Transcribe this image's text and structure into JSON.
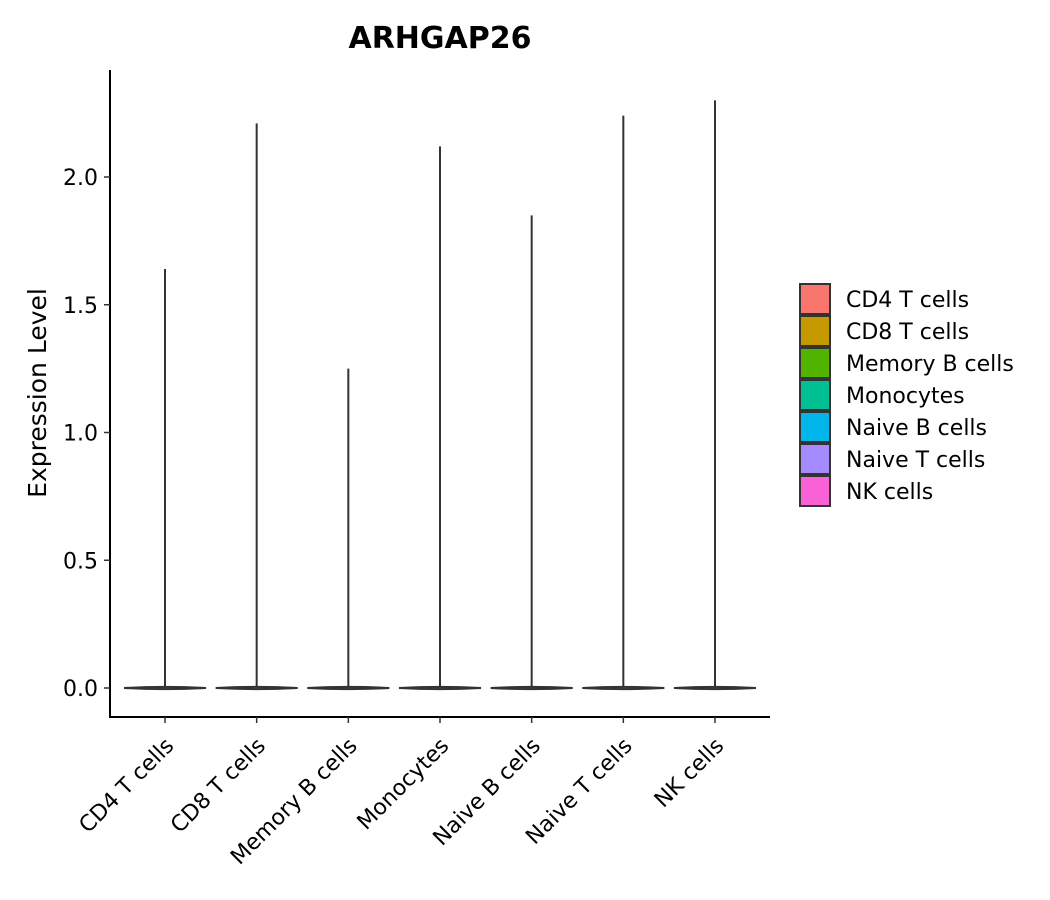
{
  "chart_data": {
    "type": "violin",
    "title": "ARHGAP26",
    "xlabel": "",
    "ylabel": "Expression Level",
    "ylim": [
      -0.11,
      2.42
    ],
    "yticks": [
      0.0,
      0.5,
      1.0,
      1.5,
      2.0
    ],
    "ytick_labels": [
      "0.0",
      "0.5",
      "1.0",
      "1.5",
      "2.0"
    ],
    "grid": false,
    "legend_position": "right",
    "categories": [
      "CD4 T cells",
      "CD8 T cells",
      "Memory B cells",
      "Monocytes",
      "Naive B cells",
      "Naive T cells",
      "NK cells"
    ],
    "series": [
      {
        "name": "CD4 T cells",
        "color": "#F8766D",
        "max": 1.64
      },
      {
        "name": "CD8 T cells",
        "color": "#C49A00",
        "max": 2.21
      },
      {
        "name": "Memory B cells",
        "color": "#53B400",
        "max": 1.25
      },
      {
        "name": "Monocytes",
        "color": "#00C094",
        "max": 2.12
      },
      {
        "name": "Naive B cells",
        "color": "#00B6EB",
        "max": 1.85
      },
      {
        "name": "Naive T cells",
        "color": "#A58AFF",
        "max": 2.24
      },
      {
        "name": "NK cells",
        "color": "#FB61D7",
        "max": 2.3
      }
    ],
    "baseline_value": 0.0
  }
}
